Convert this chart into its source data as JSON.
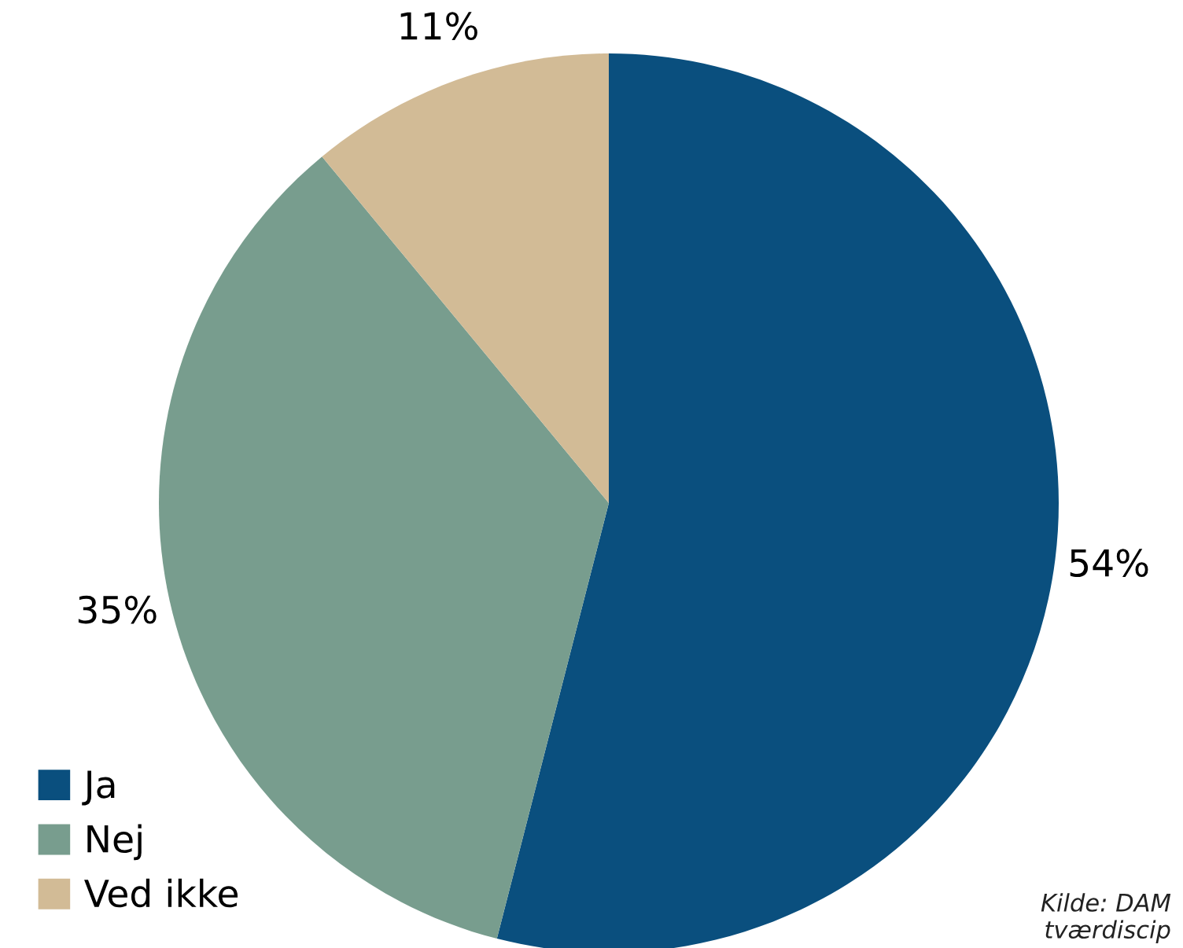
{
  "chart_data": {
    "type": "pie",
    "categories": [
      "Ja",
      "Nej",
      "Ved ikke"
    ],
    "values": [
      54,
      35,
      11
    ],
    "colors": [
      "#0a4f7e",
      "#789d8e",
      "#d2bb96"
    ],
    "value_labels": [
      "54%",
      "35%",
      "11%"
    ],
    "legend": "bottom left",
    "annotations": [
      "Kilde: DAM\ntværdiscip"
    ]
  }
}
